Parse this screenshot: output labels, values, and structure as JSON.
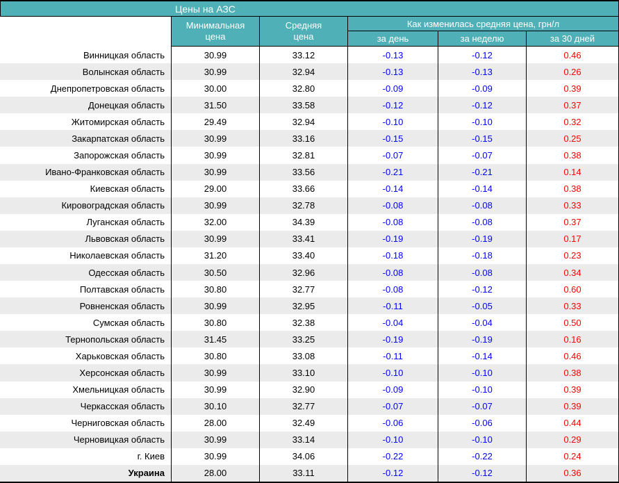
{
  "chart_data": {
    "type": "table",
    "title": "Цены на АЗС",
    "columns": {
      "min": {
        "line1": "Минимальная",
        "line2": "цена"
      },
      "avg": {
        "line1": "Средняя",
        "line2": "цена"
      }
    },
    "group_header": "Как изменилась средняя цена, грн/л",
    "sub_headers": [
      "за день",
      "за неделю",
      "за 30 дней"
    ],
    "rows": [
      {
        "region": "Винницкая область",
        "min": "30.99",
        "avg": "33.12",
        "day": "-0.13",
        "week": "-0.12",
        "days30": "0.46"
      },
      {
        "region": "Волынская область",
        "min": "30.99",
        "avg": "32.94",
        "day": "-0.13",
        "week": "-0.13",
        "days30": "0.26"
      },
      {
        "region": "Днепропетровская область",
        "min": "30.00",
        "avg": "32.80",
        "day": "-0.09",
        "week": "-0.09",
        "days30": "0.39"
      },
      {
        "region": "Донецкая область",
        "min": "31.50",
        "avg": "33.58",
        "day": "-0.12",
        "week": "-0.12",
        "days30": "0.37"
      },
      {
        "region": "Житомирская область",
        "min": "29.49",
        "avg": "32.94",
        "day": "-0.10",
        "week": "-0.10",
        "days30": "0.32"
      },
      {
        "region": "Закарпатская область",
        "min": "30.99",
        "avg": "33.16",
        "day": "-0.15",
        "week": "-0.15",
        "days30": "0.25"
      },
      {
        "region": "Запорожская область",
        "min": "30.99",
        "avg": "32.81",
        "day": "-0.07",
        "week": "-0.07",
        "days30": "0.38"
      },
      {
        "region": "Ивано-Франковская область",
        "min": "30.99",
        "avg": "33.56",
        "day": "-0.21",
        "week": "-0.21",
        "days30": "0.14"
      },
      {
        "region": "Киевская область",
        "min": "29.00",
        "avg": "33.66",
        "day": "-0.14",
        "week": "-0.14",
        "days30": "0.38"
      },
      {
        "region": "Кировоградская область",
        "min": "30.99",
        "avg": "32.78",
        "day": "-0.08",
        "week": "-0.08",
        "days30": "0.33"
      },
      {
        "region": "Луганская область",
        "min": "32.00",
        "avg": "34.39",
        "day": "-0.08",
        "week": "-0.08",
        "days30": "0.37"
      },
      {
        "region": "Львовская область",
        "min": "30.99",
        "avg": "33.41",
        "day": "-0.19",
        "week": "-0.19",
        "days30": "0.17"
      },
      {
        "region": "Николаевская область",
        "min": "31.20",
        "avg": "33.40",
        "day": "-0.18",
        "week": "-0.18",
        "days30": "0.23"
      },
      {
        "region": "Одесская область",
        "min": "30.50",
        "avg": "32.96",
        "day": "-0.08",
        "week": "-0.08",
        "days30": "0.34"
      },
      {
        "region": "Полтавская область",
        "min": "30.80",
        "avg": "32.77",
        "day": "-0.08",
        "week": "-0.12",
        "days30": "0.60"
      },
      {
        "region": "Ровненская область",
        "min": "30.99",
        "avg": "32.95",
        "day": "-0.11",
        "week": "-0.05",
        "days30": "0.33"
      },
      {
        "region": "Сумская область",
        "min": "30.80",
        "avg": "32.38",
        "day": "-0.04",
        "week": "-0.04",
        "days30": "0.50"
      },
      {
        "region": "Тернопольская область",
        "min": "31.45",
        "avg": "33.25",
        "day": "-0.19",
        "week": "-0.19",
        "days30": "0.16"
      },
      {
        "region": "Харьковская область",
        "min": "30.80",
        "avg": "33.08",
        "day": "-0.11",
        "week": "-0.14",
        "days30": "0.46"
      },
      {
        "region": "Херсонская область",
        "min": "30.99",
        "avg": "33.10",
        "day": "-0.10",
        "week": "-0.10",
        "days30": "0.38"
      },
      {
        "region": "Хмельницкая область",
        "min": "30.99",
        "avg": "32.90",
        "day": "-0.09",
        "week": "-0.10",
        "days30": "0.39"
      },
      {
        "region": "Черкасская область",
        "min": "30.10",
        "avg": "32.77",
        "day": "-0.07",
        "week": "-0.07",
        "days30": "0.39"
      },
      {
        "region": "Черниговская область",
        "min": "28.00",
        "avg": "32.49",
        "day": "-0.06",
        "week": "-0.06",
        "days30": "0.44"
      },
      {
        "region": "Черновицкая область",
        "min": "30.99",
        "avg": "33.14",
        "day": "-0.10",
        "week": "-0.10",
        "days30": "0.29"
      },
      {
        "region": "г. Киев",
        "min": "30.99",
        "avg": "34.06",
        "day": "-0.22",
        "week": "-0.22",
        "days30": "0.24"
      },
      {
        "region": "Украина",
        "bold": true,
        "min": "28.00",
        "avg": "33.11",
        "day": "-0.12",
        "week": "-0.12",
        "days30": "0.36"
      }
    ]
  },
  "colors": {
    "header_bg": "#4FB0B8",
    "stripe": "#EBEBEB",
    "negative": "#0000FF",
    "positive": "#FF0000"
  }
}
